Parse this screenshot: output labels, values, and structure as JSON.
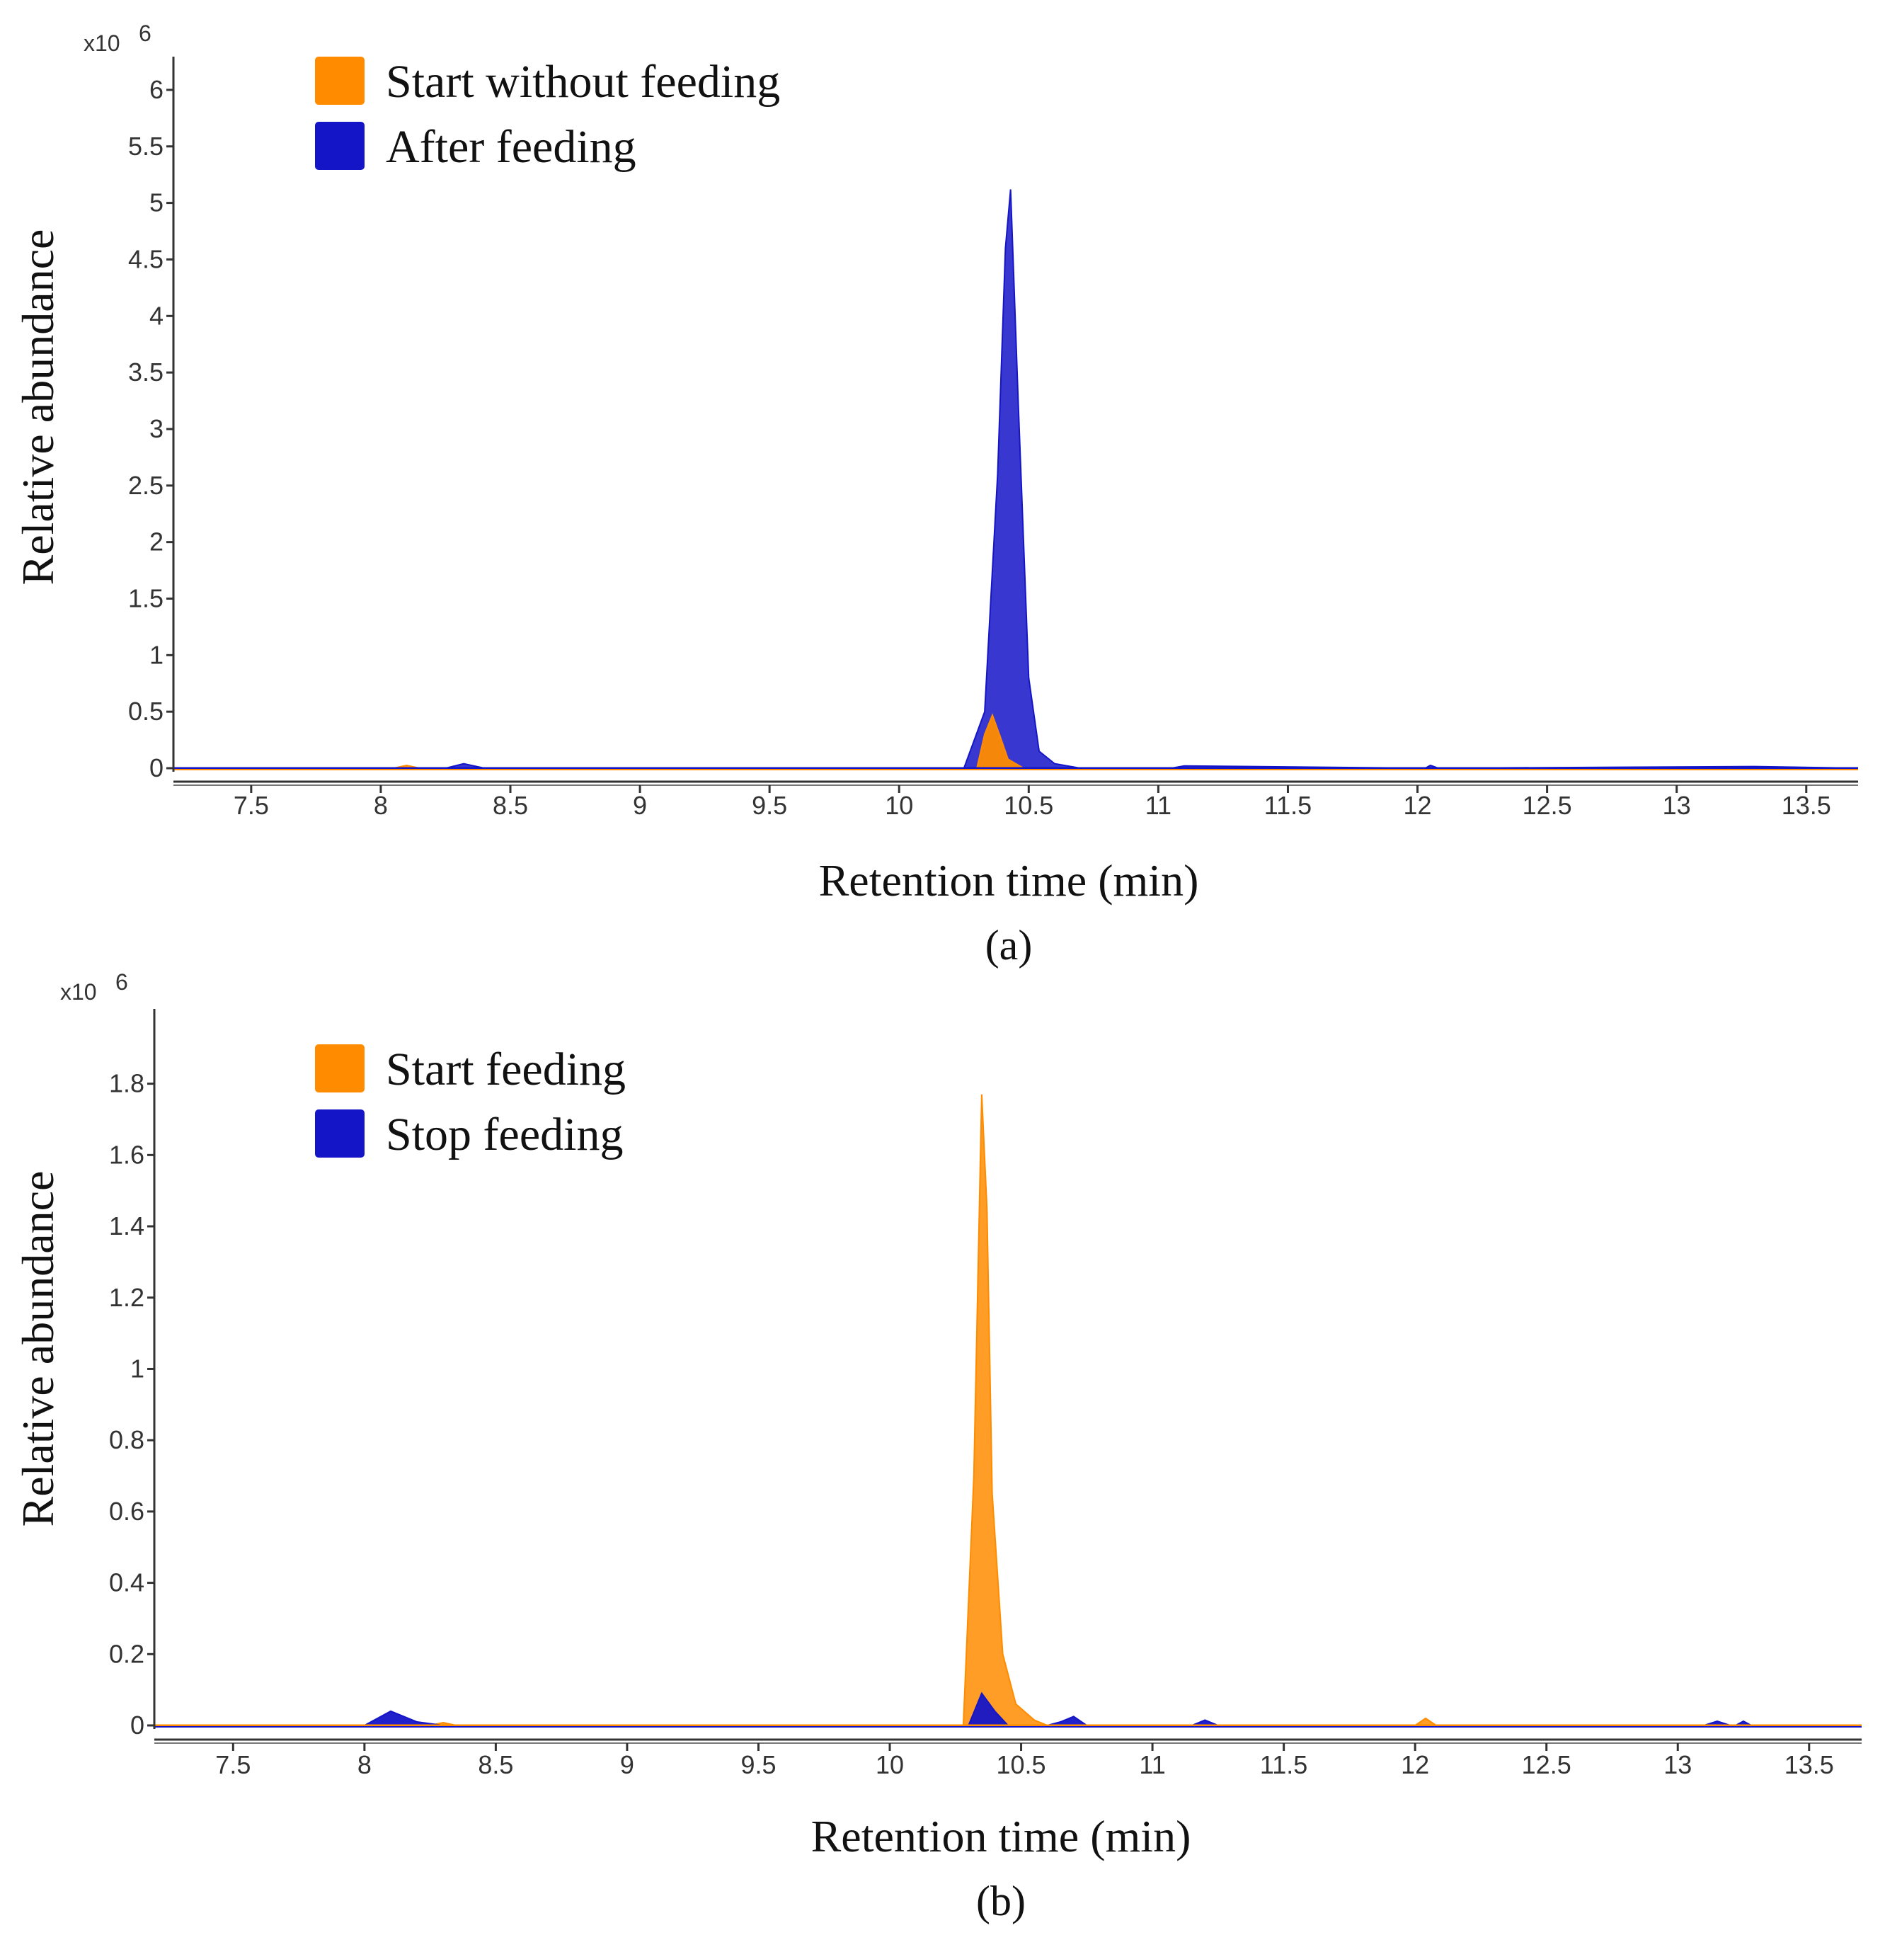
{
  "chart_data": [
    {
      "type": "area",
      "panel_label": "(a)",
      "exponent_label": "x10",
      "exponent_power": "6",
      "xlabel": "Retention time (min)",
      "ylabel": "Relative abundance",
      "xlim": [
        7.2,
        13.7
      ],
      "ylim": [
        0,
        6.2
      ],
      "xticks": [
        "7.5",
        "8",
        "8.5",
        "9",
        "9.5",
        "10",
        "10.5",
        "11",
        "11.5",
        "12",
        "12.5",
        "13",
        "13.5"
      ],
      "yticks": [
        "0",
        "0.5",
        "1",
        "1.5",
        "2",
        "2.5",
        "3",
        "3.5",
        "4",
        "4.5",
        "5",
        "5.5",
        "6"
      ],
      "legend_position": "top-left",
      "series": [
        {
          "name": "After feeding",
          "color": "#1515c8",
          "x": [
            7.2,
            8.25,
            8.32,
            8.4,
            10.25,
            10.33,
            10.38,
            10.41,
            10.43,
            10.46,
            10.5,
            10.54,
            10.6,
            10.7,
            11.05,
            11.1,
            12.03,
            12.05,
            12.08,
            13.3,
            13.7
          ],
          "values": [
            0.0,
            0.0,
            0.04,
            0.0,
            0.0,
            0.5,
            2.6,
            4.6,
            5.12,
            3.2,
            0.8,
            0.15,
            0.04,
            0.0,
            0.0,
            0.02,
            0.0,
            0.025,
            0.0,
            0.015,
            0.0
          ]
        },
        {
          "name": "Start without feeding",
          "color": "#ff8c00",
          "x": [
            7.2,
            8.05,
            8.1,
            8.15,
            10.3,
            10.33,
            10.36,
            10.39,
            10.42,
            10.48,
            13.7
          ],
          "values": [
            0.0,
            0.0,
            0.025,
            0.0,
            0.0,
            0.3,
            0.47,
            0.28,
            0.08,
            0.0,
            0.0
          ]
        }
      ]
    },
    {
      "type": "area",
      "panel_label": "(b)",
      "exponent_label": "x10",
      "exponent_power": "6",
      "xlabel": "Retention time (min)",
      "ylabel": "Relative abundance",
      "xlim": [
        7.2,
        13.7
      ],
      "ylim": [
        0,
        1.98
      ],
      "xticks": [
        "7.5",
        "8",
        "8.5",
        "9",
        "9.5",
        "10",
        "10.5",
        "11",
        "11.5",
        "12",
        "12.5",
        "13",
        "13.5"
      ],
      "yticks": [
        "0",
        "0.2",
        "0.4",
        "0.6",
        "0.8",
        "1",
        "1.2",
        "1.4",
        "1.6",
        "1.8"
      ],
      "legend_position": "top-left",
      "series": [
        {
          "name": "Start feeding",
          "color": "#ff8c00",
          "x": [
            7.2,
            8.25,
            8.3,
            8.35,
            10.28,
            10.32,
            10.35,
            10.37,
            10.39,
            10.43,
            10.48,
            10.55,
            10.6,
            10.65,
            12.0,
            12.04,
            12.08,
            13.7
          ],
          "values": [
            0.0,
            0.0,
            0.008,
            0.0,
            0.0,
            0.7,
            1.77,
            1.45,
            0.65,
            0.2,
            0.06,
            0.015,
            0.0,
            0.0,
            0.0,
            0.02,
            0.0,
            0.0
          ]
        },
        {
          "name": "Stop feeding",
          "color": "#1515c8",
          "x": [
            7.2,
            8.0,
            8.1,
            8.2,
            8.3,
            10.3,
            10.35,
            10.4,
            10.45,
            10.6,
            10.65,
            10.7,
            10.75,
            11.15,
            11.2,
            11.25,
            13.1,
            13.15,
            13.2,
            13.22,
            13.25,
            13.28,
            13.7
          ],
          "values": [
            0.0,
            0.0,
            0.04,
            0.01,
            0.0,
            0.0,
            0.09,
            0.04,
            0.0,
            0.0,
            0.01,
            0.025,
            0.0,
            0.0,
            0.015,
            0.0,
            0.0,
            0.012,
            0.0,
            0.0,
            0.012,
            0.0,
            0.0
          ]
        }
      ]
    }
  ]
}
